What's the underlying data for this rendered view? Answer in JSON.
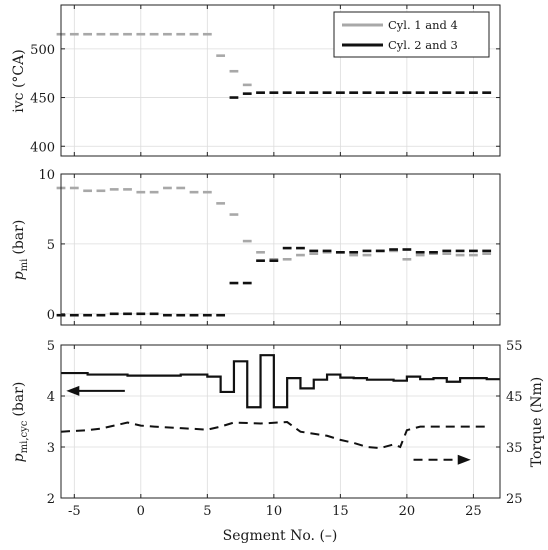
{
  "chart_data": [
    {
      "type": "scatter",
      "panel": "top",
      "ylabel": "ivc (°CA)",
      "xlim": [
        -6,
        27
      ],
      "ylim": [
        390,
        545
      ],
      "xticks": [
        -5,
        0,
        5,
        10,
        15,
        20,
        25
      ],
      "yticks": [
        400,
        450,
        500
      ],
      "grid": true,
      "legend": {
        "placement": "top-right",
        "entries": [
          {
            "label": "Cyl. 1 and 4",
            "color": "#a8a8a8"
          },
          {
            "label": "Cyl. 2 and 3",
            "color": "#111111"
          }
        ]
      },
      "series": [
        {
          "name": "Cyl. 1 and 4",
          "color": "#a8a8a8",
          "x": [
            -6,
            -5,
            -4,
            -3,
            -2,
            -1,
            0,
            1,
            2,
            3,
            4,
            5,
            6,
            7,
            8,
            9,
            10,
            11,
            12,
            13,
            14,
            15,
            16,
            17,
            18,
            19,
            20,
            21,
            22,
            23,
            24,
            25,
            26
          ],
          "y": [
            515,
            515,
            515,
            515,
            515,
            515,
            515,
            515,
            515,
            515,
            515,
            515,
            493,
            477,
            463,
            455,
            455,
            455,
            455,
            455,
            455,
            455,
            455,
            455,
            455,
            455,
            455,
            455,
            455,
            455,
            455,
            455,
            455
          ]
        },
        {
          "name": "Cyl. 2 and 3",
          "color": "#111111",
          "x": [
            7,
            8,
            9,
            10,
            11,
            12,
            13,
            14,
            15,
            16,
            17,
            18,
            19,
            20,
            21,
            22,
            23,
            24,
            25,
            26
          ],
          "y": [
            450,
            454,
            455,
            455,
            455,
            455,
            455,
            455,
            455,
            455,
            455,
            455,
            455,
            455,
            455,
            455,
            455,
            455,
            455,
            455
          ]
        }
      ]
    },
    {
      "type": "scatter",
      "panel": "middle",
      "ylabel": "p_mi (bar)",
      "ylabel_main": "p",
      "ylabel_sub": "mi",
      "ylabel_unit": "(bar)",
      "xlim": [
        -6,
        27
      ],
      "ylim": [
        -0.8,
        10
      ],
      "xticks": [
        -5,
        0,
        5,
        10,
        15,
        20,
        25
      ],
      "yticks": [
        0,
        5,
        10
      ],
      "grid": true,
      "series": [
        {
          "name": "Cyl. 1 and 4",
          "color": "#a8a8a8",
          "x": [
            -6,
            -5,
            -4,
            -3,
            -2,
            -1,
            0,
            1,
            2,
            3,
            4,
            5,
            6,
            7,
            8,
            9,
            10,
            11,
            12,
            13,
            14,
            15,
            16,
            17,
            18,
            19,
            20,
            21,
            22,
            23,
            24,
            25,
            26
          ],
          "y": [
            9.0,
            9.0,
            8.8,
            8.8,
            8.9,
            8.9,
            8.7,
            8.7,
            9.0,
            9.0,
            8.7,
            8.7,
            7.9,
            7.1,
            5.2,
            4.4,
            3.9,
            3.9,
            4.2,
            4.3,
            4.4,
            4.4,
            4.2,
            4.2,
            4.5,
            4.5,
            3.9,
            4.2,
            4.3,
            4.3,
            4.2,
            4.2,
            4.3
          ]
        },
        {
          "name": "Cyl. 2 and 3",
          "color": "#111111",
          "x": [
            -6,
            -5,
            -4,
            -3,
            -2,
            -1,
            0,
            1,
            2,
            3,
            4,
            5,
            6,
            7,
            8,
            9,
            10,
            11,
            12,
            13,
            14,
            15,
            16,
            17,
            18,
            19,
            20,
            21,
            22,
            23,
            24,
            25,
            26
          ],
          "y": [
            -0.1,
            -0.1,
            -0.1,
            -0.1,
            0.0,
            0.0,
            0.0,
            0.0,
            -0.1,
            -0.1,
            -0.1,
            -0.1,
            -0.1,
            2.2,
            2.2,
            3.8,
            3.8,
            4.7,
            4.7,
            4.5,
            4.5,
            4.4,
            4.4,
            4.5,
            4.5,
            4.6,
            4.6,
            4.4,
            4.4,
            4.5,
            4.5,
            4.5,
            4.5
          ]
        }
      ]
    },
    {
      "type": "line",
      "panel": "bottom",
      "ylabel_main": "p",
      "ylabel_sub": "mi,cyc",
      "ylabel_unit": "(bar)",
      "ylabel": "p_mi,cyc (bar)",
      "ylabel_right": "Torque (Nm)",
      "xlabel": "Segment No. (–)",
      "xlim": [
        -6,
        27
      ],
      "ylim": [
        2,
        5
      ],
      "ylim_right": [
        25,
        55
      ],
      "xticks": [
        -5,
        0,
        5,
        10,
        15,
        20,
        25
      ],
      "yticks": [
        2,
        3,
        4,
        5
      ],
      "yticks_right": [
        25,
        35,
        45,
        55
      ],
      "grid": true,
      "series": [
        {
          "name": "p_mi,cyc",
          "axis": "left",
          "style": "solid-step",
          "color": "#111111",
          "x": [
            -6,
            -4,
            -1,
            1,
            3,
            5,
            6,
            7,
            8,
            9,
            10,
            11,
            12,
            13,
            14,
            15,
            16,
            17,
            19,
            20,
            21,
            22,
            23,
            24,
            26
          ],
          "y": [
            4.45,
            4.42,
            4.4,
            4.4,
            4.42,
            4.38,
            4.08,
            4.68,
            3.78,
            4.8,
            3.78,
            4.35,
            4.15,
            4.32,
            4.42,
            4.36,
            4.35,
            4.32,
            4.3,
            4.38,
            4.33,
            4.35,
            4.28,
            4.35,
            4.33
          ]
        },
        {
          "name": "Torque",
          "axis": "right",
          "style": "dashed",
          "color": "#111111",
          "x": [
            -6,
            -4,
            -3,
            -1,
            0,
            1,
            3,
            5,
            6,
            7,
            9,
            11,
            12,
            13,
            14,
            15,
            16,
            17,
            18,
            19,
            19.5,
            20,
            21,
            23,
            26
          ],
          "y": [
            38.0,
            38.3,
            38.6,
            39.8,
            39.2,
            39.0,
            38.7,
            38.4,
            39.0,
            39.8,
            39.6,
            39.9,
            38.0,
            37.6,
            37.2,
            36.4,
            35.8,
            35.0,
            34.8,
            35.5,
            35.0,
            38.3,
            39.0,
            39.0,
            39.0
          ]
        }
      ],
      "annotations": [
        {
          "type": "arrow",
          "direction": "left",
          "axis": "left",
          "x_from": -1.2,
          "x_to": -5.6,
          "y": 4.1
        },
        {
          "type": "arrow",
          "direction": "right",
          "axis": "right",
          "x_from": 20.5,
          "x_to": 24.8,
          "y": 32.5
        }
      ]
    }
  ]
}
